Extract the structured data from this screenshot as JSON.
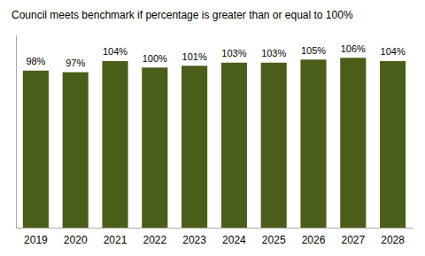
{
  "chart_data": {
    "type": "bar",
    "title": "Council meets benchmark if percentage is greater than or equal to 100%",
    "categories": [
      "2019",
      "2020",
      "2021",
      "2022",
      "2023",
      "2024",
      "2025",
      "2026",
      "2027",
      "2028"
    ],
    "values": [
      98,
      97,
      104,
      100,
      101,
      103,
      103,
      105,
      106,
      104
    ],
    "value_labels": [
      "98%",
      "97%",
      "104%",
      "100%",
      "101%",
      "103%",
      "103%",
      "105%",
      "106%",
      "104%"
    ],
    "data_labels": true,
    "color": "#4a5e1a",
    "ylim": [
      0,
      120
    ],
    "grid": false,
    "tick_labels": "x"
  }
}
